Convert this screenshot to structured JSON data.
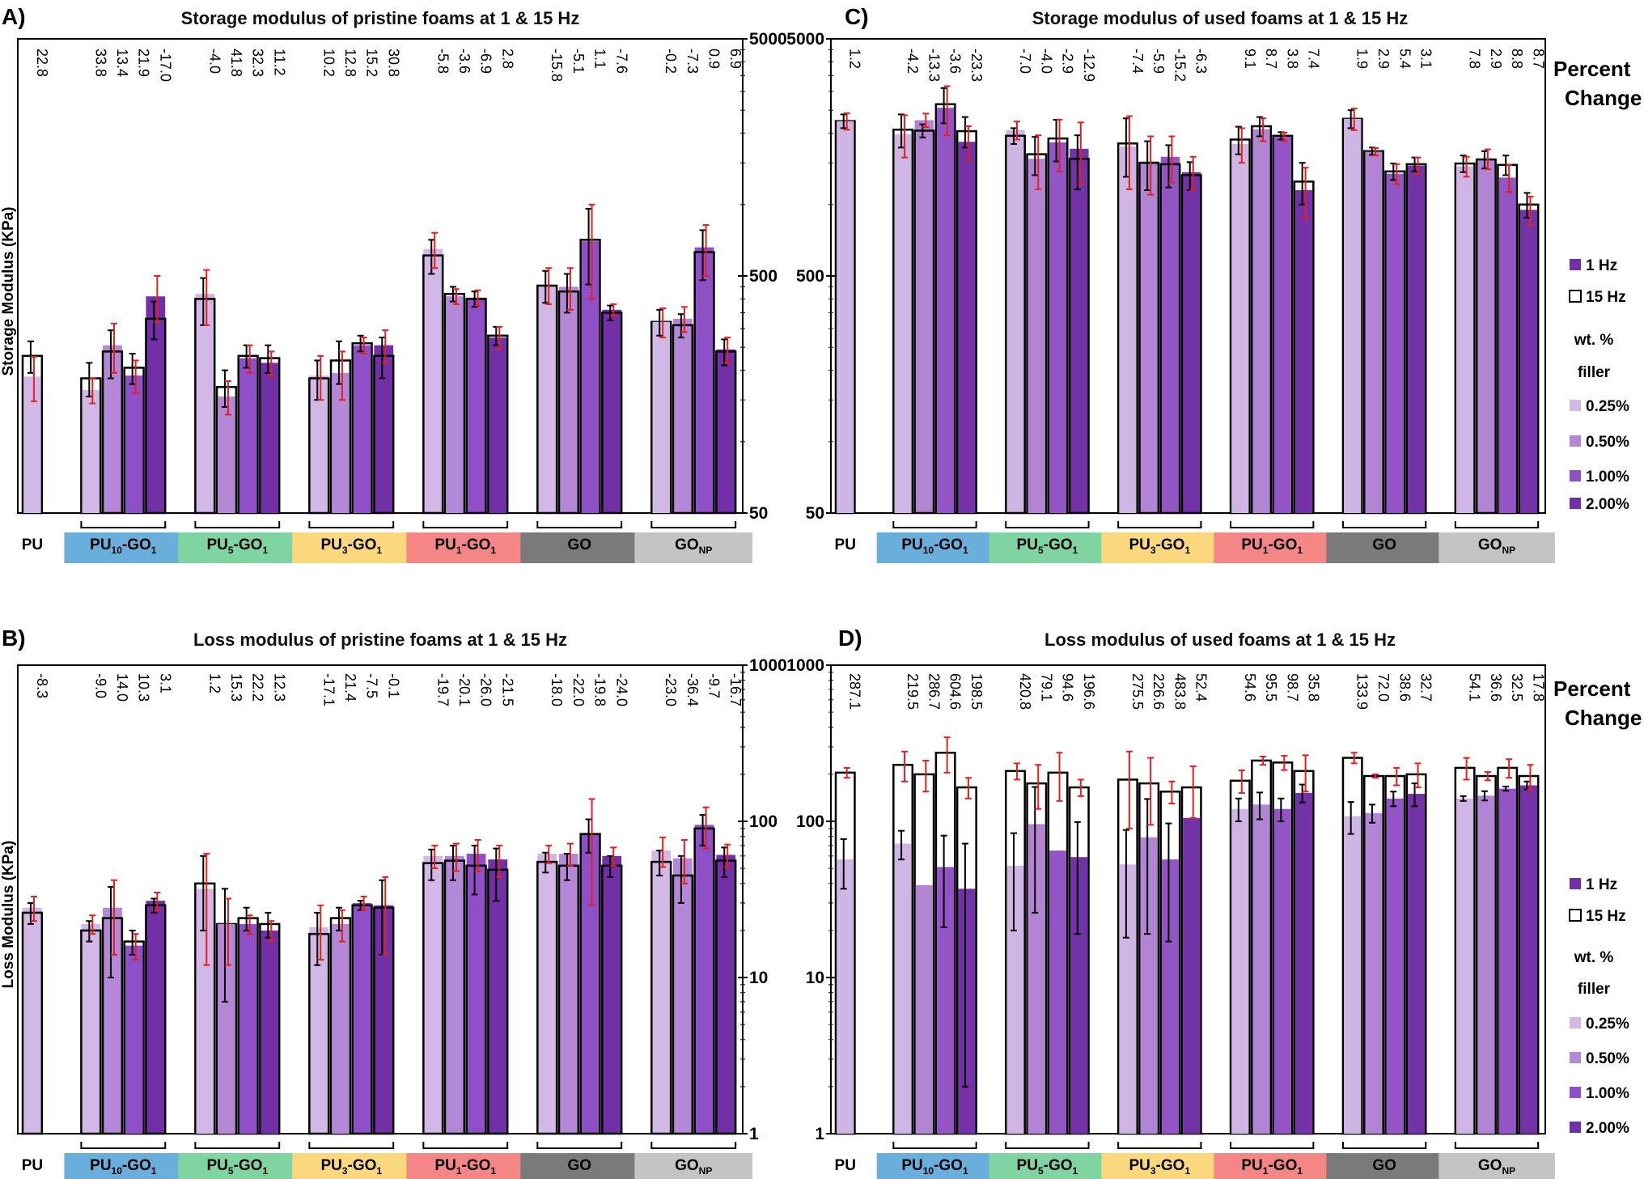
{
  "colors": {
    "pristine_shades": [
      "#d2b8e6",
      "#b488d6",
      "#8f4fc6",
      "#7130a6"
    ],
    "used_shades": [
      "#ceb5e3",
      "#b185d4",
      "#9354c6",
      "#7332a6"
    ],
    "hz15_fill": "#ffffff",
    "outline": "#000000",
    "error_red": "#e32020",
    "error_black": "#000000",
    "group_colors": [
      "#ffffff",
      "#6aaedc",
      "#7fd4a2",
      "#fbd87e",
      "#f58686",
      "#7a7a7a",
      "#c4c4c4"
    ]
  },
  "groups": [
    {
      "key": "PU",
      "base": "PU",
      "sub": ""
    },
    {
      "key": "PU10-GO1",
      "base": "PU",
      "sub": "10",
      "mid": "-GO",
      "sub2": "1"
    },
    {
      "key": "PU5-GO1",
      "base": "PU",
      "sub": "5",
      "mid": "-GO",
      "sub2": "1"
    },
    {
      "key": "PU3-GO1",
      "base": "PU",
      "sub": "3",
      "mid": "-GO",
      "sub2": "1"
    },
    {
      "key": "PU1-GO1",
      "base": "PU",
      "sub": "1",
      "mid": "-GO",
      "sub2": "1"
    },
    {
      "key": "GO",
      "base": "GO",
      "sub": ""
    },
    {
      "key": "GONP",
      "base": "GO",
      "sub": "NP"
    }
  ],
  "legend": {
    "hz1": "1 Hz",
    "hz15": "15 Hz",
    "filler_title_1": "wt. %",
    "filler_title_2": "filler",
    "fillers": [
      "0.25%",
      "0.50%",
      "1.00%",
      "2.00%"
    ],
    "percent_change_1": "Percent",
    "percent_change_2": "Change"
  },
  "chart_data": [
    {
      "panel": "A)",
      "type": "bar",
      "title": "Storage modulus of pristine foams at 1 & 15 Hz",
      "ylabel": "Storage Modulus (KPa)",
      "yscale": "log",
      "ylim": [
        50,
        5000
      ],
      "yticks": [
        "5000",
        "500",
        "50"
      ],
      "ytick_values": [
        5000,
        500,
        50
      ],
      "axis_side": "right",
      "series": [
        {
          "name": "1 Hz",
          "values": [
            188,
            165,
            255,
            190,
            410,
            420,
            155,
            225,
            215,
            190,
            195,
            255,
            255,
            650,
            410,
            405,
            275,
            460,
            450,
            700,
            360,
            320,
            330,
            660,
            245
          ]
        },
        {
          "name": "15 Hz",
          "values": [
            230,
            185,
            240,
            205,
            330,
            400,
            170,
            230,
            225,
            185,
            220,
            260,
            230,
            610,
            420,
            400,
            280,
            455,
            430,
            710,
            350,
            320,
            310,
            630,
            240
          ]
        }
      ],
      "percent_change": [
        "22.8",
        "33.8",
        "13.4",
        "21.9",
        "-17.0",
        "-4.0",
        "41.8",
        "32.3",
        "11.2",
        "10.2",
        "12.8",
        "15.2",
        "30.8",
        "-5.8",
        "-3.6",
        "-6.9",
        "2.8",
        "-15.8",
        "-5.1",
        "1.1",
        "-7.6",
        "-0.2",
        "-7.3",
        "0.9",
        "6.9"
      ],
      "red_err": [
        [
          188,
          40
        ],
        [
          165,
          20
        ],
        [
          255,
          60
        ],
        [
          190,
          30
        ],
        [
          410,
          90
        ],
        [
          420,
          110
        ],
        [
          155,
          25
        ],
        [
          225,
          30
        ],
        [
          215,
          25
        ],
        [
          190,
          40
        ],
        [
          195,
          45
        ],
        [
          255,
          20
        ],
        [
          255,
          40
        ],
        [
          650,
          110
        ],
        [
          410,
          30
        ],
        [
          405,
          30
        ],
        [
          275,
          30
        ],
        [
          460,
          80
        ],
        [
          450,
          90
        ],
        [
          700,
          300
        ],
        [
          360,
          20
        ],
        [
          320,
          45
        ],
        [
          330,
          40
        ],
        [
          660,
          160
        ],
        [
          245,
          30
        ]
      ],
      "black_err": [
        [
          230,
          35
        ],
        [
          185,
          30
        ],
        [
          240,
          55
        ],
        [
          205,
          30
        ],
        [
          330,
          60
        ],
        [
          400,
          90
        ],
        [
          170,
          30
        ],
        [
          230,
          25
        ],
        [
          225,
          30
        ],
        [
          185,
          35
        ],
        [
          220,
          45
        ],
        [
          260,
          20
        ],
        [
          230,
          45
        ],
        [
          610,
          100
        ],
        [
          420,
          30
        ],
        [
          400,
          30
        ],
        [
          280,
          25
        ],
        [
          455,
          70
        ],
        [
          430,
          80
        ],
        [
          710,
          250
        ],
        [
          350,
          25
        ],
        [
          320,
          40
        ],
        [
          310,
          35
        ],
        [
          630,
          150
        ],
        [
          240,
          30
        ]
      ]
    },
    {
      "panel": "B)",
      "type": "bar",
      "title": "Loss modulus of pristine foams at 1 & 15 Hz",
      "ylabel": "Loss Modulus (KPa)",
      "yscale": "log",
      "ylim": [
        1,
        1000
      ],
      "yticks": [
        "1000",
        "100",
        "10",
        "1"
      ],
      "ytick_values": [
        1000,
        100,
        10,
        1
      ],
      "axis_side": "right",
      "series": [
        {
          "name": "1 Hz",
          "values": [
            28,
            22,
            28,
            16,
            31,
            37,
            22,
            22,
            20,
            21,
            22,
            30,
            29,
            60,
            60,
            62,
            57,
            62,
            62,
            84,
            60,
            65,
            58,
            95,
            61
          ]
        },
        {
          "name": "15 Hz",
          "values": [
            26,
            20,
            24,
            17,
            29,
            40,
            22,
            24,
            22,
            19,
            24,
            29,
            28,
            54,
            56,
            52,
            49,
            55,
            52,
            83,
            52,
            55,
            45,
            90,
            56
          ]
        }
      ],
      "percent_change": [
        "-8.3",
        "-9.0",
        "14.0",
        "10.3",
        "3.1",
        "1.2",
        "15.3",
        "22.2",
        "12.3",
        "-17.1",
        "21.4",
        "-7.5",
        "-0.1",
        "-19.7",
        "-20.1",
        "-26.0",
        "-21.5",
        "-18.0",
        "-22.0",
        "-19.8",
        "-24.0",
        "-23.0",
        "-36.4",
        "-9.7",
        "-16.7"
      ],
      "red_err": [
        [
          28,
          5
        ],
        [
          22,
          3
        ],
        [
          28,
          14
        ],
        [
          16,
          3
        ],
        [
          31,
          4
        ],
        [
          37,
          25
        ],
        [
          22,
          10
        ],
        [
          22,
          3
        ],
        [
          20,
          3
        ],
        [
          21,
          8
        ],
        [
          22,
          5
        ],
        [
          30,
          3
        ],
        [
          29,
          15
        ],
        [
          60,
          10
        ],
        [
          60,
          12
        ],
        [
          62,
          14
        ],
        [
          57,
          13
        ],
        [
          62,
          8
        ],
        [
          62,
          10
        ],
        [
          84,
          55
        ],
        [
          60,
          8
        ],
        [
          65,
          14
        ],
        [
          58,
          18
        ],
        [
          95,
          28
        ],
        [
          61,
          10
        ]
      ],
      "black_err": [
        [
          26,
          4
        ],
        [
          20,
          3
        ],
        [
          24,
          14
        ],
        [
          17,
          3
        ],
        [
          29,
          3
        ],
        [
          40,
          20
        ],
        [
          22,
          15
        ],
        [
          24,
          4
        ],
        [
          22,
          4
        ],
        [
          19,
          7
        ],
        [
          24,
          4
        ],
        [
          29,
          2
        ],
        [
          28,
          14
        ],
        [
          54,
          12
        ],
        [
          56,
          14
        ],
        [
          52,
          18
        ],
        [
          49,
          18
        ],
        [
          55,
          8
        ],
        [
          52,
          10
        ],
        [
          83,
          20
        ],
        [
          52,
          8
        ],
        [
          55,
          10
        ],
        [
          45,
          15
        ],
        [
          90,
          20
        ],
        [
          56,
          12
        ]
      ]
    },
    {
      "panel": "C)",
      "type": "bar",
      "title": "Storage modulus of used foams at 1 & 15 Hz",
      "ylabel": "",
      "yscale": "log",
      "ylim": [
        50,
        5000
      ],
      "yticks": [
        "5000",
        "500",
        "50"
      ],
      "ytick_values": [
        5000,
        500,
        50
      ],
      "axis_side": "left",
      "series": [
        {
          "name": "1 Hz",
          "values": [
            2250,
            1980,
            2270,
            2560,
            1840,
            2060,
            1560,
            1830,
            1720,
            1760,
            1520,
            1590,
            1370,
            1800,
            2080,
            1930,
            1150,
            2300,
            1670,
            1350,
            1460,
            1450,
            1560,
            1300,
            950
          ]
        },
        {
          "name": "15 Hz",
          "values": [
            2250,
            2070,
            2050,
            2650,
            2040,
            1950,
            1630,
            1900,
            1560,
            1810,
            1500,
            1480,
            1330,
            1880,
            2140,
            1950,
            1250,
            2300,
            1680,
            1380,
            1480,
            1490,
            1550,
            1470,
            1000
          ]
        }
      ],
      "percent_change": [
        "1.2",
        "-4.2",
        "-13.3",
        "-3.6",
        "-23.3",
        "-7.0",
        "-4.0",
        "-2.9",
        "-12.9",
        "-7.4",
        "-5.9",
        "-15.2",
        "-6.3",
        "9.1",
        "8.7",
        "3.8",
        "7.4",
        "1.9",
        "2.9",
        "5.4",
        "3.1",
        "7.8",
        "2.9",
        "8.8",
        "8.7"
      ],
      "red_err": [
        [
          2250,
          180
        ],
        [
          1980,
          400
        ],
        [
          2270,
          150
        ],
        [
          2560,
          600
        ],
        [
          1840,
          300
        ],
        [
          2060,
          180
        ],
        [
          1560,
          400
        ],
        [
          1830,
          450
        ],
        [
          1720,
          500
        ],
        [
          1760,
          600
        ],
        [
          1520,
          420
        ],
        [
          1590,
          350
        ],
        [
          1370,
          220
        ],
        [
          1800,
          300
        ],
        [
          2080,
          230
        ],
        [
          1930,
          80
        ],
        [
          1150,
          280
        ],
        [
          2300,
          240
        ],
        [
          1670,
          60
        ],
        [
          1350,
          130
        ],
        [
          1460,
          120
        ],
        [
          1450,
          140
        ],
        [
          1560,
          150
        ],
        [
          1300,
          170
        ],
        [
          950,
          130
        ]
      ],
      "black_err": [
        [
          2250,
          150
        ],
        [
          2070,
          330
        ],
        [
          2050,
          130
        ],
        [
          2650,
          450
        ],
        [
          2040,
          300
        ],
        [
          1950,
          150
        ],
        [
          1630,
          300
        ],
        [
          1900,
          380
        ],
        [
          1560,
          400
        ],
        [
          1810,
          500
        ],
        [
          1500,
          350
        ],
        [
          1480,
          300
        ],
        [
          1330,
          180
        ],
        [
          1880,
          250
        ],
        [
          2140,
          200
        ],
        [
          1950,
          70
        ],
        [
          1250,
          250
        ],
        [
          2300,
          200
        ],
        [
          1680,
          60
        ],
        [
          1380,
          110
        ],
        [
          1480,
          100
        ],
        [
          1490,
          120
        ],
        [
          1550,
          130
        ],
        [
          1470,
          140
        ],
        [
          1000,
          120
        ]
      ]
    },
    {
      "panel": "D)",
      "type": "bar",
      "title": "Loss modulus of used foams at 1 & 15 Hz",
      "ylabel": "",
      "yscale": "log",
      "ylim": [
        1,
        1000
      ],
      "yticks": [
        "1000",
        "100",
        "10",
        "1"
      ],
      "ytick_values": [
        1000,
        100,
        10,
        1
      ],
      "axis_side": "left",
      "series": [
        {
          "name": "1 Hz",
          "values": [
            57,
            72,
            39,
            51,
            37,
            52,
            96,
            65,
            59,
            53,
            79,
            57,
            105,
            120,
            128,
            120,
            152,
            108,
            113,
            140,
            150,
            140,
            146,
            162,
            170
          ]
        },
        {
          "name": "15 Hz",
          "values": [
            205,
            230,
            200,
            275,
            165,
            210,
            175,
            205,
            165,
            185,
            175,
            155,
            165,
            182,
            245,
            238,
            210,
            255,
            195,
            195,
            200,
            220,
            195,
            220,
            195
          ]
        }
      ],
      "percent_change": [
        "287.1",
        "219.5",
        "286.7",
        "604.6",
        "198.5",
        "420.8",
        "79.1",
        "94.6",
        "196.6",
        "275.5",
        "226.6",
        "483.8",
        "52.4",
        "54.6",
        "95.5",
        "98.7",
        "35.8",
        "133.9",
        "72.0",
        "38.6",
        "32.7",
        "54.1",
        "36.6",
        "32.5",
        "17.8"
      ],
      "red_err": [
        [
          205,
          15
        ],
        [
          230,
          50
        ],
        [
          200,
          45
        ],
        [
          275,
          70
        ],
        [
          165,
          25
        ],
        [
          210,
          25
        ],
        [
          175,
          55
        ],
        [
          205,
          70
        ],
        [
          165,
          20
        ],
        [
          185,
          95
        ],
        [
          175,
          80
        ],
        [
          155,
          25
        ],
        [
          165,
          60
        ],
        [
          182,
          30
        ],
        [
          245,
          15
        ],
        [
          238,
          25
        ],
        [
          210,
          55
        ],
        [
          255,
          20
        ],
        [
          195,
          5
        ],
        [
          195,
          25
        ],
        [
          200,
          35
        ],
        [
          220,
          35
        ],
        [
          195,
          12
        ],
        [
          220,
          30
        ],
        [
          195,
          35
        ]
      ],
      "black_err": [
        [
          57,
          20
        ],
        [
          72,
          15
        ],
        [
          39,
          0
        ],
        [
          51,
          30
        ],
        [
          37,
          35
        ],
        [
          52,
          32
        ],
        [
          96,
          70
        ],
        [
          65,
          0
        ],
        [
          59,
          40
        ],
        [
          53,
          35
        ],
        [
          79,
          60
        ],
        [
          57,
          40
        ],
        [
          105,
          0
        ],
        [
          120,
          20
        ],
        [
          128,
          25
        ],
        [
          120,
          20
        ],
        [
          152,
          20
        ],
        [
          108,
          25
        ],
        [
          113,
          15
        ],
        [
          140,
          15
        ],
        [
          150,
          25
        ],
        [
          140,
          5
        ],
        [
          146,
          10
        ],
        [
          162,
          5
        ],
        [
          170,
          10
        ]
      ]
    }
  ]
}
